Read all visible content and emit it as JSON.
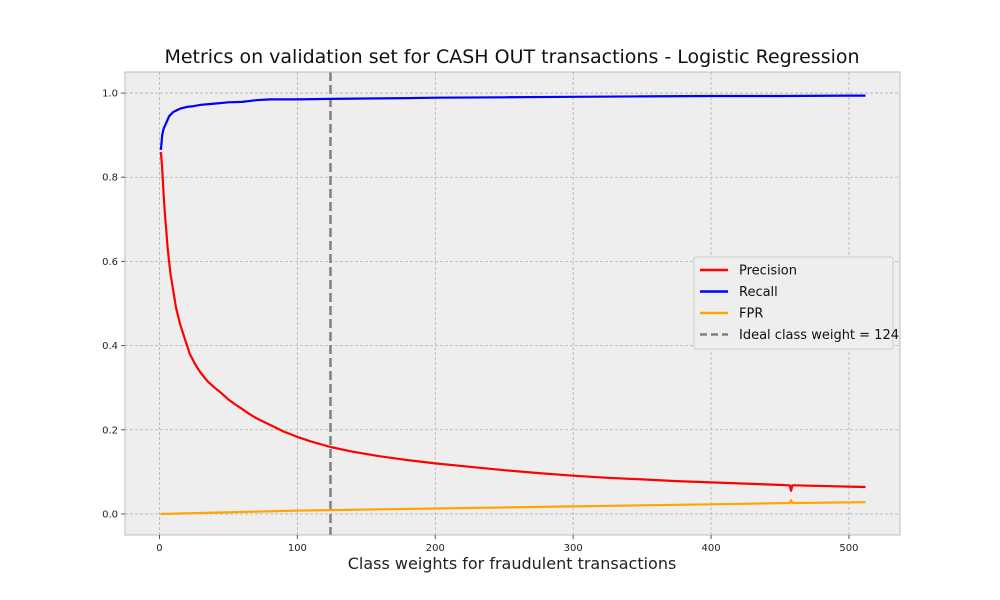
{
  "chart_data": {
    "type": "line",
    "title": "Metrics on validation set for CASH OUT transactions - Logistic Regression",
    "xlabel": "Class weights for fraudulent transactions",
    "ylabel": "",
    "xlim": [
      -25,
      537
    ],
    "ylim": [
      -0.05,
      1.05
    ],
    "xticks": [
      0,
      100,
      200,
      300,
      400,
      500
    ],
    "yticks": [
      0.0,
      0.2,
      0.4,
      0.6,
      0.8,
      1.0
    ],
    "grid": true,
    "legend_position": "center-right",
    "series": [
      {
        "name": "Precision",
        "color": "#ff0000",
        "x": [
          1,
          2,
          3,
          4,
          5,
          6,
          8,
          10,
          12,
          15,
          18,
          22,
          26,
          30,
          35,
          40,
          45,
          50,
          55,
          60,
          65,
          70,
          80,
          90,
          100,
          110,
          124,
          140,
          160,
          180,
          200,
          225,
          250,
          275,
          300,
          325,
          350,
          375,
          400,
          425,
          450,
          457,
          458,
          459,
          460,
          475,
          500,
          512
        ],
        "y": [
          0.86,
          0.82,
          0.76,
          0.71,
          0.67,
          0.63,
          0.57,
          0.53,
          0.49,
          0.45,
          0.42,
          0.38,
          0.355,
          0.335,
          0.315,
          0.3,
          0.287,
          0.272,
          0.26,
          0.249,
          0.238,
          0.228,
          0.212,
          0.196,
          0.183,
          0.172,
          0.159,
          0.148,
          0.137,
          0.128,
          0.12,
          0.112,
          0.104,
          0.097,
          0.091,
          0.086,
          0.082,
          0.078,
          0.075,
          0.072,
          0.069,
          0.068,
          0.055,
          0.068,
          0.068,
          0.067,
          0.065,
          0.064
        ]
      },
      {
        "name": "Recall",
        "color": "#0000ff",
        "x": [
          1,
          2,
          3,
          5,
          7,
          10,
          15,
          20,
          25,
          30,
          40,
          50,
          60,
          70,
          80,
          100,
          124,
          150,
          180,
          200,
          250,
          300,
          350,
          400,
          450,
          500,
          512
        ],
        "y": [
          0.865,
          0.9,
          0.915,
          0.93,
          0.945,
          0.955,
          0.963,
          0.967,
          0.969,
          0.972,
          0.975,
          0.978,
          0.979,
          0.983,
          0.985,
          0.985,
          0.986,
          0.987,
          0.988,
          0.989,
          0.99,
          0.991,
          0.992,
          0.993,
          0.993,
          0.994,
          0.994
        ]
      },
      {
        "name": "FPR",
        "color": "#ffa500",
        "x": [
          1,
          100,
          200,
          300,
          400,
          457,
          458,
          459,
          460,
          512
        ],
        "y": [
          0.0,
          0.008,
          0.013,
          0.018,
          0.023,
          0.026,
          0.033,
          0.026,
          0.026,
          0.028
        ]
      }
    ],
    "reference_lines": [
      {
        "name": "Ideal class weight = 124",
        "x": 124,
        "color": "#808080",
        "style": "dashed"
      }
    ]
  }
}
